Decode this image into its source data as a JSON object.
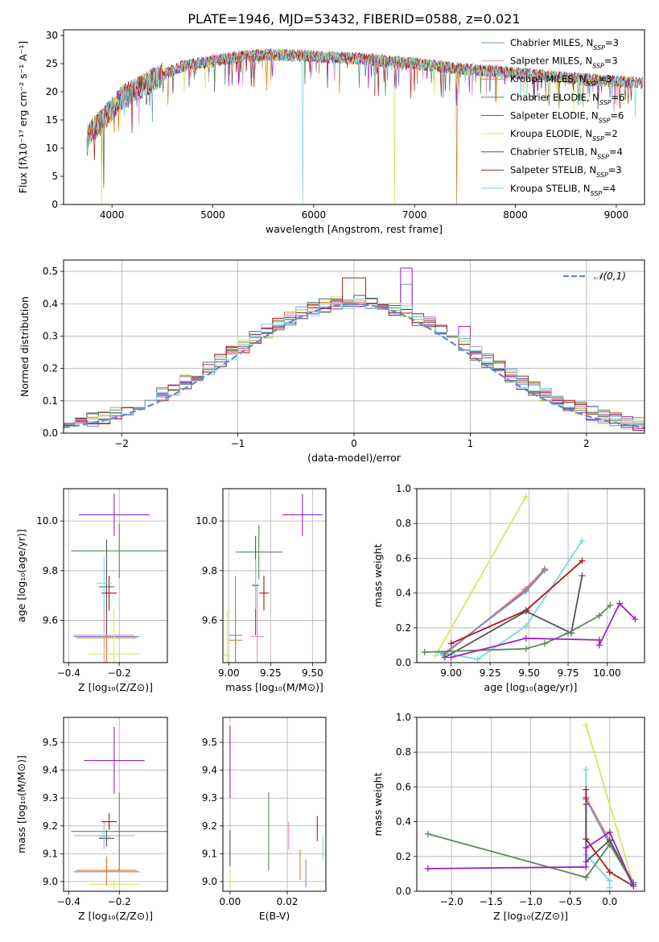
{
  "title": "PLATE=1946, MJD=53432, FIBERID=0588, z=0.021",
  "colors": {
    "Chabrier MILES": "#6f8fd8",
    "Salpeter MILES": "#e58fc4",
    "Kroupa MILES": "#e07b2a",
    "Chabrier ELODIE": "#5a8a5a",
    "Salpeter ELODIE": "#a020c8",
    "Kroupa ELODIE": "#d4e85a",
    "Chabrier STELIB": "#555555",
    "Salpeter STELIB": "#b01818",
    "Kroupa STELIB": "#78d8dc"
  },
  "chart_data": [
    {
      "id": "spectrum",
      "type": "line",
      "xlabel": "wavelength [Angstrom, rest frame]",
      "ylabel": "Flux [fλ10⁻¹⁷ erg cm⁻² s⁻¹ A⁻¹]",
      "xlim": [
        3520,
        9280
      ],
      "ylim": [
        0,
        31
      ],
      "xticks": [
        4000,
        5000,
        6000,
        7000,
        8000,
        9000
      ],
      "yticks": [
        0,
        5,
        10,
        15,
        20,
        25,
        30
      ],
      "legend": [
        {
          "series": "Chabrier MILES",
          "label": "Chabrier MILES, N_SSP=3"
        },
        {
          "series": "Salpeter MILES",
          "label": "Salpeter MILES, N_SSP=3"
        },
        {
          "series": "Kroupa MILES",
          "label": "Kroupa MILES, N_SSP=3"
        },
        {
          "series": "Chabrier ELODIE",
          "label": "Chabrier ELODIE, N_SSP=6"
        },
        {
          "series": "Salpeter ELODIE",
          "label": "Salpeter ELODIE, N_SSP=6"
        },
        {
          "series": "Kroupa ELODIE",
          "label": "Kroupa ELODIE, N_SSP=2"
        },
        {
          "series": "Chabrier STELIB",
          "label": "Chabrier STELIB, N_SSP=4"
        },
        {
          "series": "Salpeter STELIB",
          "label": "Salpeter STELIB, N_SSP=3"
        },
        {
          "series": "Kroupa STELIB",
          "label": "Kroupa STELIB, N_SSP=4"
        }
      ],
      "continuum": [
        [
          3750,
          12
        ],
        [
          3850,
          14
        ],
        [
          3950,
          16
        ],
        [
          4100,
          19
        ],
        [
          4300,
          21
        ],
        [
          4500,
          23
        ],
        [
          4700,
          24.5
        ],
        [
          5000,
          25.5
        ],
        [
          5300,
          26.3
        ],
        [
          5600,
          26.6
        ],
        [
          6000,
          26.3
        ],
        [
          6500,
          25.8
        ],
        [
          7000,
          25
        ],
        [
          7500,
          24
        ],
        [
          8000,
          23.3
        ],
        [
          8500,
          22.5
        ],
        [
          9000,
          21.8
        ],
        [
          9300,
          21.5
        ]
      ],
      "drops": [
        {
          "series": "Kroupa STELIB",
          "x": 5890,
          "y": 0
        },
        {
          "series": "Kroupa ELODIE",
          "x": 3895,
          "y": 0
        },
        {
          "series": "Kroupa ELODIE",
          "x": 6800,
          "y": 0
        },
        {
          "series": "Kroupa MILES",
          "x": 7420,
          "y": 0
        },
        {
          "series": "Chabrier STELIB",
          "x": 3920,
          "y": 3
        }
      ]
    },
    {
      "id": "residuals",
      "type": "histogram",
      "xlabel": "(data-model)/error",
      "ylabel": "Normed distribution",
      "xlim": [
        -2.5,
        2.5
      ],
      "ylim": [
        0,
        0.535
      ],
      "xticks": [
        -2,
        -1,
        0,
        1,
        2
      ],
      "yticks": [
        0.0,
        0.1,
        0.2,
        0.3,
        0.4,
        0.5
      ],
      "bin_width": 0.1,
      "reference": {
        "label": "𝒩(0,1)",
        "mean": 0,
        "sigma": 1,
        "color": "#5b8bd6"
      },
      "highlights": [
        {
          "series": "Salpeter ELODIE",
          "x": 0.45,
          "y": 0.51
        },
        {
          "series": "Salpeter STELIB",
          "x": 0.0,
          "y": 0.48
        },
        {
          "series": "Chabrier MILES",
          "x": 0.45,
          "y": 0.46
        },
        {
          "series": "Salpeter ELODIE",
          "x": 0.95,
          "y": 0.33
        }
      ]
    },
    {
      "id": "age_vs_Z",
      "type": "errorbar",
      "xlabel": "Z [log₁₀(Z/Z⊙)]",
      "ylabel": "age  [log₁₀(age/yr)]",
      "xlim": [
        -0.42,
        -0.01
      ],
      "ylim": [
        9.43,
        10.13
      ],
      "xticks": [
        -0.4,
        -0.2
      ],
      "yticks": [
        9.6,
        9.8,
        10.0
      ],
      "points": [
        {
          "series": "Chabrier MILES",
          "x": -0.25,
          "y": 9.535,
          "xerr": 0.13,
          "yerr": 0.24
        },
        {
          "series": "Salpeter MILES",
          "x": -0.26,
          "y": 9.54,
          "xerr": 0.12,
          "yerr": 0.2
        },
        {
          "series": "Kroupa MILES",
          "x": -0.25,
          "y": 9.53,
          "xerr": 0.12,
          "yerr": 0.2
        },
        {
          "series": "Chabrier ELODIE",
          "x": -0.2,
          "y": 9.88,
          "xerr": 0.19,
          "yerr": 0.11
        },
        {
          "series": "Salpeter ELODIE",
          "x": -0.22,
          "y": 10.025,
          "xerr": 0.14,
          "yerr": 0.085
        },
        {
          "series": "Kroupa ELODIE",
          "x": -0.22,
          "y": 9.465,
          "xerr": 0.1,
          "yerr": 0.18
        },
        {
          "series": "Chabrier STELIB",
          "x": -0.25,
          "y": 9.735,
          "xerr": 0.03,
          "yerr": 0.19
        },
        {
          "series": "Salpeter STELIB",
          "x": -0.24,
          "y": 9.71,
          "xerr": 0.03,
          "yerr": 0.07
        },
        {
          "series": "Kroupa STELIB",
          "x": -0.26,
          "y": 9.75,
          "xerr": 0.03,
          "yerr": 0.11
        }
      ]
    },
    {
      "id": "age_vs_mass",
      "type": "errorbar",
      "xlabel": "mass [log₁₀(M/M⊙)]",
      "ylabel": "",
      "xlim": [
        8.965,
        9.58
      ],
      "ylim": [
        9.43,
        10.13
      ],
      "xticks": [
        9.0,
        9.25,
        9.5
      ],
      "yticks": [
        9.6,
        9.8,
        10.0
      ],
      "points": [
        {
          "series": "Chabrier MILES",
          "x": 9.04,
          "y": 9.54,
          "xerr": 0.04,
          "yerr": 0.24
        },
        {
          "series": "Salpeter MILES",
          "x": 9.17,
          "y": 9.535,
          "xerr": 0.04,
          "yerr": 0.2
        },
        {
          "series": "Kroupa MILES",
          "x": 9.04,
          "y": 9.52,
          "xerr": 0.04,
          "yerr": 0.2
        },
        {
          "series": "Chabrier ELODIE",
          "x": 9.18,
          "y": 9.875,
          "xerr": 0.14,
          "yerr": 0.11
        },
        {
          "series": "Salpeter ELODIE",
          "x": 9.44,
          "y": 10.025,
          "xerr": 0.12,
          "yerr": 0.085
        },
        {
          "series": "Kroupa ELODIE",
          "x": 8.99,
          "y": 9.46,
          "xerr": 0.02,
          "yerr": 0.18
        },
        {
          "series": "Chabrier STELIB",
          "x": 9.16,
          "y": 9.74,
          "xerr": 0.02,
          "yerr": 0.2
        },
        {
          "series": "Salpeter STELIB",
          "x": 9.21,
          "y": 9.71,
          "xerr": 0.03,
          "yerr": 0.07
        },
        {
          "series": "Kroupa STELIB",
          "x": 9.16,
          "y": 9.745,
          "xerr": 0.02,
          "yerr": 0.1
        }
      ]
    },
    {
      "id": "weight_vs_age",
      "type": "line",
      "xlabel": "age  [log₁₀(age/yr)]",
      "ylabel": "mass weight",
      "xlim": [
        8.78,
        10.24
      ],
      "ylim": [
        0,
        1
      ],
      "xticks": [
        9.0,
        9.25,
        9.5,
        9.75,
        10.0
      ],
      "yticks": [
        0.0,
        0.2,
        0.4,
        0.6,
        0.8,
        1.0
      ],
      "series": [
        {
          "name": "Kroupa ELODIE",
          "points": [
            [
              8.9,
              0.04
            ],
            [
              9.48,
              0.955
            ]
          ]
        },
        {
          "name": "Kroupa STELIB",
          "points": [
            [
              8.92,
              0.06
            ],
            [
              9.17,
              0.02
            ],
            [
              9.48,
              0.21
            ],
            [
              9.84,
              0.7
            ]
          ]
        },
        {
          "name": "Salpeter MILES",
          "points": [
            [
              8.95,
              0.04
            ],
            [
              9.47,
              0.42
            ],
            [
              9.6,
              0.535
            ]
          ]
        },
        {
          "name": "Kroupa MILES",
          "points": [
            [
              8.96,
              0.05
            ],
            [
              9.48,
              0.42
            ],
            [
              9.6,
              0.54
            ]
          ]
        },
        {
          "name": "Chabrier MILES",
          "points": [
            [
              8.95,
              0.05
            ],
            [
              9.48,
              0.41
            ],
            [
              9.6,
              0.53
            ]
          ]
        },
        {
          "name": "Salpeter STELIB",
          "points": [
            [
              9.0,
              0.11
            ],
            [
              9.48,
              0.3
            ],
            [
              9.84,
              0.585
            ]
          ]
        },
        {
          "name": "Chabrier STELIB",
          "points": [
            [
              8.96,
              0.03
            ],
            [
              9.48,
              0.295
            ],
            [
              9.77,
              0.17
            ],
            [
              9.84,
              0.5
            ]
          ]
        },
        {
          "name": "Chabrier ELODIE",
          "points": [
            [
              8.83,
              0.06
            ],
            [
              9.48,
              0.08
            ],
            [
              9.6,
              0.11
            ],
            [
              9.75,
              0.17
            ],
            [
              9.95,
              0.27
            ],
            [
              10.02,
              0.33
            ]
          ]
        },
        {
          "name": "Salpeter ELODIE",
          "points": [
            [
              9.0,
              0.03
            ],
            [
              9.48,
              0.14
            ],
            [
              9.95,
              0.13
            ],
            [
              9.95,
              0.1
            ],
            [
              10.08,
              0.34
            ],
            [
              10.18,
              0.25
            ]
          ]
        }
      ]
    },
    {
      "id": "mass_vs_Z",
      "type": "errorbar",
      "xlabel": "Z [log₁₀(Z/Z⊙)]",
      "ylabel": "mass [log₁₀(M/M⊙)]",
      "xlim": [
        -0.42,
        -0.01
      ],
      "ylim": [
        8.965,
        9.59
      ],
      "xticks": [
        -0.4,
        -0.2
      ],
      "yticks": [
        9.0,
        9.1,
        9.2,
        9.3,
        9.4,
        9.5
      ],
      "points": [
        {
          "series": "Chabrier MILES",
          "x": -0.25,
          "y": 9.035,
          "xerr": 0.13,
          "yerr": 0.05
        },
        {
          "series": "Salpeter MILES",
          "x": -0.26,
          "y": 9.165,
          "xerr": 0.12,
          "yerr": 0.05
        },
        {
          "series": "Kroupa MILES",
          "x": -0.25,
          "y": 9.04,
          "xerr": 0.12,
          "yerr": 0.05
        },
        {
          "series": "Chabrier ELODIE",
          "x": -0.2,
          "y": 9.18,
          "xerr": 0.19,
          "yerr": 0.14
        },
        {
          "series": "Salpeter ELODIE",
          "x": -0.22,
          "y": 9.435,
          "xerr": 0.12,
          "yerr": 0.12
        },
        {
          "series": "Kroupa ELODIE",
          "x": -0.22,
          "y": 8.99,
          "xerr": 0.1,
          "yerr": 0.02
        },
        {
          "series": "Chabrier STELIB",
          "x": -0.25,
          "y": 9.155,
          "xerr": 0.03,
          "yerr": 0.03
        },
        {
          "series": "Salpeter STELIB",
          "x": -0.24,
          "y": 9.215,
          "xerr": 0.03,
          "yerr": 0.03
        },
        {
          "series": "Kroupa STELIB",
          "x": -0.26,
          "y": 9.16,
          "xerr": 0.02,
          "yerr": 0.03
        }
      ]
    },
    {
      "id": "mass_vs_ebv",
      "type": "errorbar",
      "xlabel": "E(B-V)",
      "ylabel": "",
      "xlim": [
        -0.0025,
        0.0335
      ],
      "ylim": [
        8.965,
        9.59
      ],
      "xticks": [
        0.0,
        0.02
      ],
      "xticklabels": [
        "0.00",
        "0.02"
      ],
      "yticks": [
        9.0,
        9.1,
        9.2,
        9.3,
        9.4,
        9.5
      ],
      "points": [
        {
          "series": "Salpeter ELODIE",
          "x": 0.0,
          "y": 9.43,
          "xerr": 0,
          "yerr": 0.13
        },
        {
          "series": "Chabrier STELIB",
          "x": 0.0,
          "y": 9.12,
          "xerr": 0,
          "yerr": 0.065
        },
        {
          "series": "Kroupa ELODIE",
          "x": 0.0,
          "y": 9.01,
          "xerr": 0,
          "yerr": 0.04
        },
        {
          "series": "Chabrier ELODIE",
          "x": 0.0135,
          "y": 9.18,
          "xerr": 0,
          "yerr": 0.14
        },
        {
          "series": "Salpeter MILES",
          "x": 0.0205,
          "y": 9.165,
          "xerr": 0,
          "yerr": 0.05
        },
        {
          "series": "Kroupa MILES",
          "x": 0.0245,
          "y": 9.06,
          "xerr": 0,
          "yerr": 0.055
        },
        {
          "series": "Chabrier MILES",
          "x": 0.0265,
          "y": 9.03,
          "xerr": 0,
          "yerr": 0.05
        },
        {
          "series": "Salpeter STELIB",
          "x": 0.0305,
          "y": 9.19,
          "xerr": 0,
          "yerr": 0.045
        },
        {
          "series": "Kroupa STELIB",
          "x": 0.0325,
          "y": 9.12,
          "xerr": 0,
          "yerr": 0.045
        }
      ]
    },
    {
      "id": "weight_vs_Z",
      "type": "line",
      "xlabel": "Z [log₁₀(Z/Z⊙)]",
      "ylabel": "mass weight",
      "xlim": [
        -2.44,
        0.44
      ],
      "ylim": [
        0,
        1
      ],
      "xticks": [
        -2.0,
        -1.5,
        -1.0,
        -0.5,
        0.0
      ],
      "yticks": [
        0.0,
        0.2,
        0.4,
        0.6,
        0.8,
        1.0
      ],
      "series": [
        {
          "name": "Kroupa ELODIE",
          "points": [
            [
              -0.3,
              0.955
            ],
            [
              0.3,
              0.04
            ]
          ]
        },
        {
          "name": "Kroupa STELIB",
          "points": [
            [
              -0.3,
              0.7
            ],
            [
              -0.3,
              0.21
            ],
            [
              0.0,
              0.06
            ],
            [
              0.0,
              0.02
            ]
          ]
        },
        {
          "name": "Kroupa MILES",
          "points": [
            [
              -0.3,
              0.54
            ],
            [
              0.0,
              0.29
            ],
            [
              0.3,
              0.05
            ]
          ]
        },
        {
          "name": "Salpeter MILES",
          "points": [
            [
              -0.3,
              0.535
            ],
            [
              0.0,
              0.28
            ],
            [
              0.3,
              0.04
            ]
          ]
        },
        {
          "name": "Chabrier MILES",
          "points": [
            [
              -0.3,
              0.53
            ],
            [
              0.0,
              0.27
            ],
            [
              0.3,
              0.05
            ]
          ]
        },
        {
          "name": "Salpeter STELIB",
          "points": [
            [
              -0.3,
              0.585
            ],
            [
              -0.3,
              0.3
            ],
            [
              0.0,
              0.11
            ],
            [
              0.3,
              0.03
            ]
          ]
        },
        {
          "name": "Chabrier STELIB",
          "points": [
            [
              -0.3,
              0.5
            ],
            [
              -0.3,
              0.17
            ],
            [
              0.0,
              0.295
            ],
            [
              0.3,
              0.03
            ]
          ]
        },
        {
          "name": "Chabrier ELODIE",
          "points": [
            [
              -2.3,
              0.33
            ],
            [
              -0.3,
              0.08
            ],
            [
              0.0,
              0.27
            ],
            [
              0.3,
              0.04
            ]
          ]
        },
        {
          "name": "Salpeter ELODIE",
          "points": [
            [
              -2.3,
              0.13
            ],
            [
              -0.3,
              0.14
            ],
            [
              -0.3,
              0.25
            ],
            [
              0.0,
              0.34
            ],
            [
              0.3,
              0.03
            ]
          ]
        }
      ]
    }
  ]
}
